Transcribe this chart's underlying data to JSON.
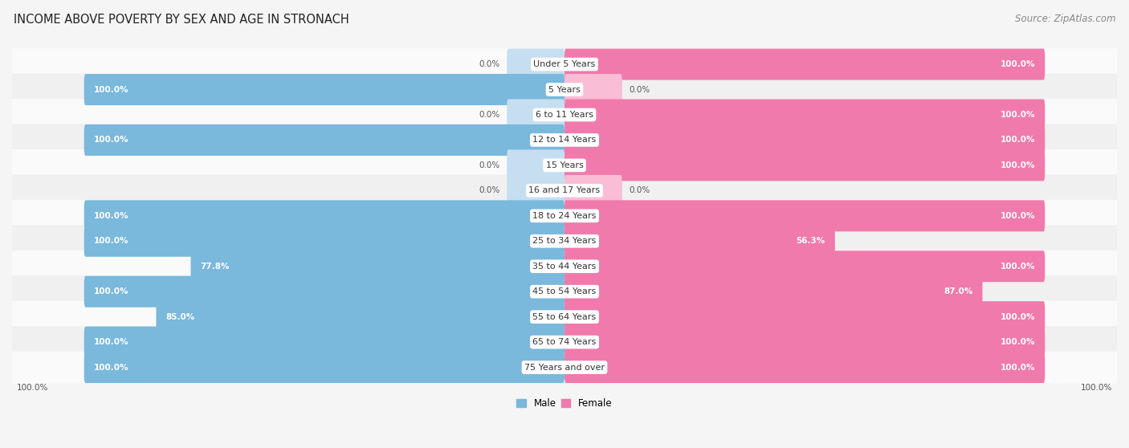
{
  "title": "INCOME ABOVE POVERTY BY SEX AND AGE IN STRONACH",
  "source": "Source: ZipAtlas.com",
  "categories": [
    "Under 5 Years",
    "5 Years",
    "6 to 11 Years",
    "12 to 14 Years",
    "15 Years",
    "16 and 17 Years",
    "18 to 24 Years",
    "25 to 34 Years",
    "35 to 44 Years",
    "45 to 54 Years",
    "55 to 64 Years",
    "65 to 74 Years",
    "75 Years and over"
  ],
  "male": [
    0.0,
    100.0,
    0.0,
    100.0,
    0.0,
    0.0,
    100.0,
    100.0,
    77.8,
    100.0,
    85.0,
    100.0,
    100.0
  ],
  "female": [
    100.0,
    0.0,
    100.0,
    100.0,
    100.0,
    0.0,
    100.0,
    56.3,
    100.0,
    87.0,
    100.0,
    100.0,
    100.0
  ],
  "male_color": "#7ab8dc",
  "female_color": "#f07aab",
  "male_color_light": "#c5dff0",
  "female_color_light": "#f9bdd5",
  "row_bg_odd": "#f0f0f0",
  "row_bg_even": "#fafafa",
  "bg_color": "#f5f5f5",
  "title_fontsize": 10.5,
  "source_fontsize": 8.5,
  "label_fontsize": 8.0,
  "bar_label_fontsize": 7.5,
  "legend_fontsize": 8.5,
  "bar_height": 0.62,
  "stub_size": 12.0,
  "xlim": 115
}
